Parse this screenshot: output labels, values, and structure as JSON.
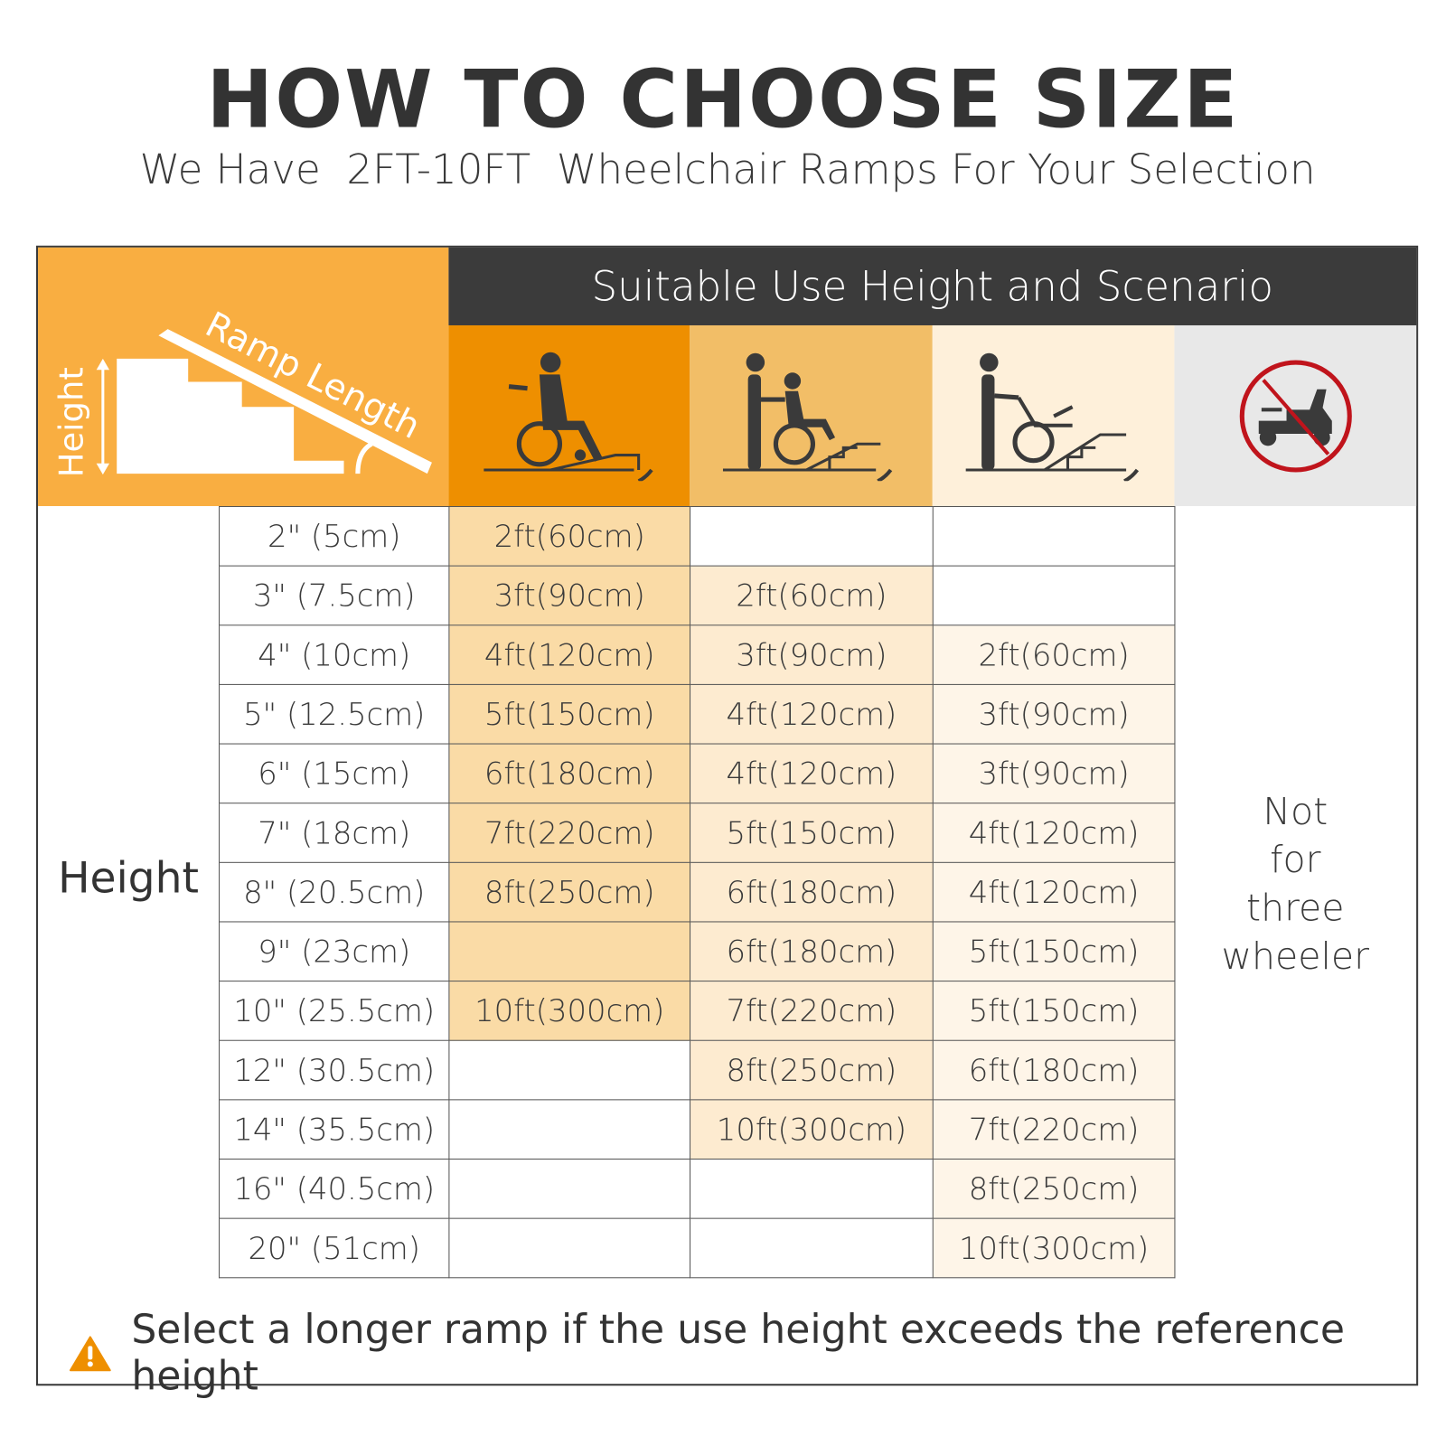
{
  "header": {
    "title": "HOW TO CHOOSE SIZE",
    "subtitle": "We Have  2FT-10FT  Wheelchair Ramps For Your Selection"
  },
  "diagram": {
    "height_label": "Height",
    "ramp_length_label": "Ramp Length"
  },
  "table": {
    "section_title": "Suitable Use Height and Scenario",
    "row_header": "Height",
    "scenario_icons": [
      "self-propelled-wheelchair-icon",
      "assisted-wheelchair-push-icon",
      "assisted-wheelchair-pull-icon",
      "no-three-wheeler-icon"
    ],
    "column_colors": [
      "#FADBA6",
      "#FDEBD0",
      "#FEF5E8"
    ],
    "not_for_label": [
      "Not",
      "for",
      "three",
      "wheeler"
    ],
    "rows": [
      {
        "height": "2\" (5cm)",
        "values": [
          "2ft(60cm)",
          "",
          ""
        ]
      },
      {
        "height": "3\" (7.5cm)",
        "values": [
          "3ft(90cm)",
          "2ft(60cm)",
          ""
        ]
      },
      {
        "height": "4\" (10cm)",
        "values": [
          "4ft(120cm)",
          "3ft(90cm)",
          "2ft(60cm)"
        ]
      },
      {
        "height": "5\" (12.5cm)",
        "values": [
          "5ft(150cm)",
          "4ft(120cm)",
          "3ft(90cm)"
        ]
      },
      {
        "height": "6\" (15cm)",
        "values": [
          "6ft(180cm)",
          "4ft(120cm)",
          "3ft(90cm)"
        ]
      },
      {
        "height": "7\" (18cm)",
        "values": [
          "7ft(220cm)",
          "5ft(150cm)",
          "4ft(120cm)"
        ]
      },
      {
        "height": "8\" (20.5cm)",
        "values": [
          "8ft(250cm)",
          "6ft(180cm)",
          "4ft(120cm)"
        ]
      },
      {
        "height": "9\" (23cm)",
        "values": [
          "",
          "6ft(180cm)",
          "5ft(150cm)"
        ]
      },
      {
        "height": "10\" (25.5cm)",
        "values": [
          "10ft(300cm)",
          "7ft(220cm)",
          "5ft(150cm)"
        ]
      },
      {
        "height": "12\" (30.5cm)",
        "values": [
          "",
          "8ft(250cm)",
          "6ft(180cm)"
        ]
      },
      {
        "height": "14\" (35.5cm)",
        "values": [
          "",
          "10ft(300cm)",
          "7ft(220cm)"
        ]
      },
      {
        "height": "16\" (40.5cm)",
        "values": [
          "",
          "",
          "8ft(250cm)"
        ]
      },
      {
        "height": "20\" (51cm)",
        "values": [
          "",
          "",
          "10ft(300cm)"
        ]
      }
    ],
    "filled_ranges": [
      [
        0,
        8
      ],
      [
        1,
        10
      ],
      [
        2,
        12
      ]
    ]
  },
  "footer": {
    "icon": "warning-icon",
    "note": "Select a longer ramp if the use height exceeds the reference height"
  }
}
